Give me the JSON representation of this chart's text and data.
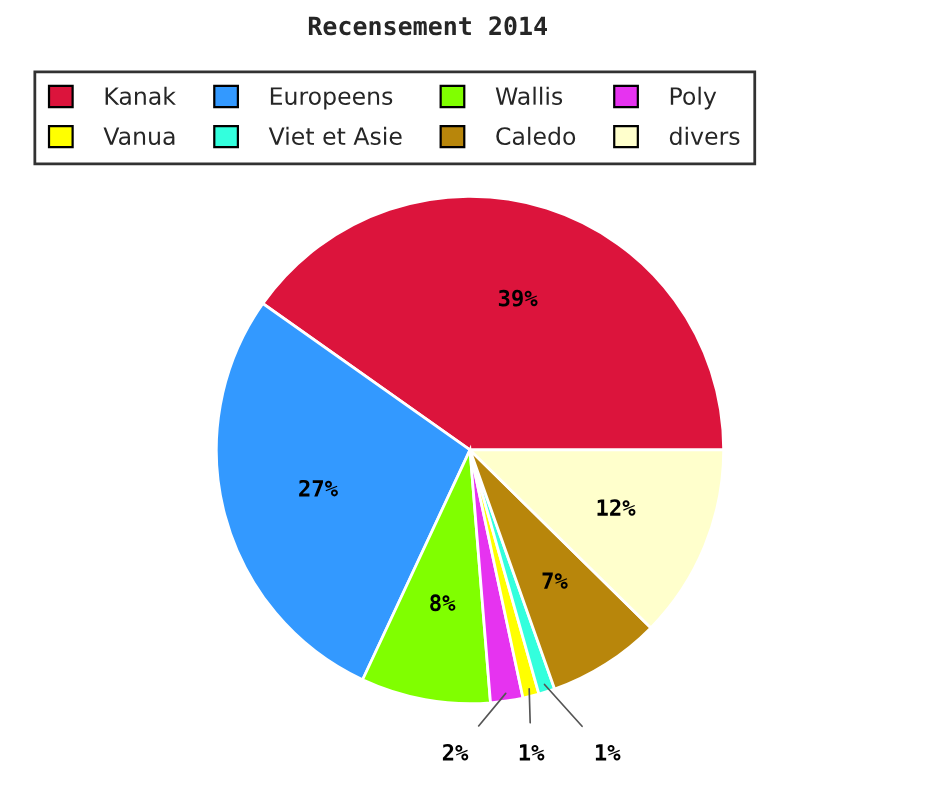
{
  "chart_data": {
    "type": "pie",
    "title": "Recensement 2014",
    "categories": [
      "Kanak",
      "Europeens",
      "Wallis",
      "Poly",
      "Vanua",
      "Viet et Asie",
      "Caledo",
      "divers"
    ],
    "values": [
      39,
      27,
      8,
      2,
      1,
      1,
      7,
      12
    ],
    "colors": [
      "#dc143c",
      "#3399ff",
      "#80ff00",
      "#e633f0",
      "#ffff00",
      "#33ffdd",
      "#b8860b",
      "#ffffcc"
    ],
    "value_labels": [
      "39%",
      "27%",
      "8%",
      "2%",
      "1%",
      "1%",
      "7%",
      "12%"
    ],
    "legend": "top"
  }
}
